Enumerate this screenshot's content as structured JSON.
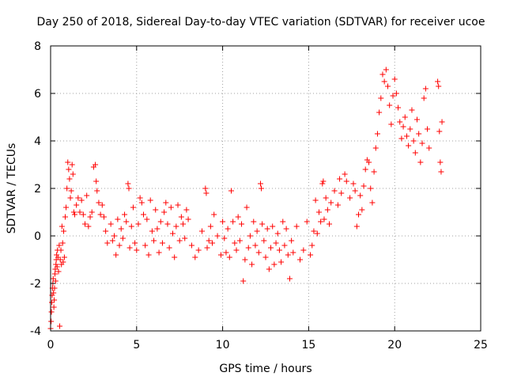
{
  "chart_data": {
    "type": "scatter",
    "title": "Day 250 of 2018, Sidereal Day-to-day VTEC variation (SDTVAR) for receiver ucoe",
    "xlabel": "GPS time / hours",
    "ylabel": "SDTVAR / TECUs",
    "xlim": [
      0,
      25
    ],
    "ylim": [
      -4,
      8
    ],
    "xticks": [
      0,
      5,
      10,
      15,
      20,
      25
    ],
    "yticks": [
      -4,
      -2,
      0,
      2,
      4,
      6,
      8
    ],
    "xtick_labels": [
      "0",
      "5",
      "10",
      "15",
      "20",
      "25"
    ],
    "ytick_labels": [
      "-4",
      "-2",
      "0",
      "2",
      "4",
      "6",
      "8"
    ],
    "grid": true,
    "marker": "+",
    "color": "#ff0000",
    "series": [
      {
        "name": "SDTVAR",
        "points": [
          [
            0.0,
            -3.9
          ],
          [
            0.03,
            -3.6
          ],
          [
            0.05,
            -3.2
          ],
          [
            0.07,
            -2.8
          ],
          [
            0.09,
            -2.5
          ],
          [
            0.11,
            -2.2
          ],
          [
            0.13,
            -2.0
          ],
          [
            0.15,
            -1.8
          ],
          [
            0.17,
            -2.4
          ],
          [
            0.19,
            -3.0
          ],
          [
            0.21,
            -2.7
          ],
          [
            0.23,
            -2.2
          ],
          [
            0.25,
            -1.6
          ],
          [
            0.27,
            -1.4
          ],
          [
            0.29,
            -1.9
          ],
          [
            0.31,
            -1.2
          ],
          [
            0.33,
            -1.0
          ],
          [
            0.35,
            -0.8
          ],
          [
            0.38,
            -1.3
          ],
          [
            0.4,
            -0.6
          ],
          [
            0.43,
            -0.9
          ],
          [
            0.46,
            -1.5
          ],
          [
            0.5,
            -0.4
          ],
          [
            0.53,
            -3.8
          ],
          [
            0.56,
            -1.0
          ],
          [
            0.6,
            -0.6
          ],
          [
            0.63,
            -1.2
          ],
          [
            0.66,
            0.4
          ],
          [
            0.7,
            -0.3
          ],
          [
            0.73,
            -1.1
          ],
          [
            0.76,
            0.2
          ],
          [
            0.8,
            -0.9
          ],
          [
            0.85,
            0.8
          ],
          [
            0.9,
            1.2
          ],
          [
            0.95,
            2.0
          ],
          [
            1.0,
            3.1
          ],
          [
            1.05,
            2.8
          ],
          [
            1.1,
            2.4
          ],
          [
            1.15,
            1.6
          ],
          [
            1.2,
            1.9
          ],
          [
            1.25,
            3.0
          ],
          [
            1.3,
            2.6
          ],
          [
            1.35,
            1.0
          ],
          [
            1.4,
            0.9
          ],
          [
            1.5,
            1.3
          ],
          [
            1.6,
            1.6
          ],
          [
            1.7,
            1.0
          ],
          [
            1.8,
            1.5
          ],
          [
            1.9,
            0.9
          ],
          [
            2.0,
            0.5
          ],
          [
            2.1,
            1.7
          ],
          [
            2.2,
            0.4
          ],
          [
            2.3,
            0.8
          ],
          [
            2.4,
            1.0
          ],
          [
            2.5,
            2.9
          ],
          [
            2.6,
            3.0
          ],
          [
            2.65,
            2.3
          ],
          [
            2.7,
            1.9
          ],
          [
            2.8,
            1.4
          ],
          [
            2.9,
            0.9
          ],
          [
            3.0,
            1.3
          ],
          [
            3.1,
            0.8
          ],
          [
            3.2,
            0.2
          ],
          [
            3.3,
            -0.3
          ],
          [
            3.5,
            0.5
          ],
          [
            3.6,
            -0.2
          ],
          [
            3.7,
            0.0
          ],
          [
            3.8,
            -0.8
          ],
          [
            3.9,
            0.7
          ],
          [
            4.0,
            -0.4
          ],
          [
            4.1,
            0.3
          ],
          [
            4.2,
            -0.1
          ],
          [
            4.3,
            0.9
          ],
          [
            4.4,
            0.6
          ],
          [
            4.5,
            2.2
          ],
          [
            4.55,
            2.0
          ],
          [
            4.6,
            -0.5
          ],
          [
            4.7,
            0.4
          ],
          [
            4.8,
            1.2
          ],
          [
            4.9,
            -0.3
          ],
          [
            5.0,
            -0.6
          ],
          [
            5.1,
            0.5
          ],
          [
            5.2,
            1.6
          ],
          [
            5.3,
            1.4
          ],
          [
            5.4,
            0.9
          ],
          [
            5.5,
            -0.4
          ],
          [
            5.6,
            0.7
          ],
          [
            5.7,
            -0.8
          ],
          [
            5.8,
            1.5
          ],
          [
            5.9,
            0.2
          ],
          [
            6.0,
            -0.2
          ],
          [
            6.1,
            1.1
          ],
          [
            6.2,
            0.3
          ],
          [
            6.3,
            -0.7
          ],
          [
            6.4,
            0.6
          ],
          [
            6.5,
            -0.3
          ],
          [
            6.6,
            1.0
          ],
          [
            6.7,
            1.4
          ],
          [
            6.8,
            0.5
          ],
          [
            6.9,
            -0.5
          ],
          [
            7.0,
            1.2
          ],
          [
            7.1,
            0.1
          ],
          [
            7.2,
            -0.9
          ],
          [
            7.3,
            0.4
          ],
          [
            7.4,
            1.3
          ],
          [
            7.5,
            -0.2
          ],
          [
            7.6,
            0.8
          ],
          [
            7.7,
            0.5
          ],
          [
            7.8,
            -0.1
          ],
          [
            7.9,
            1.1
          ],
          [
            8.0,
            0.7
          ],
          [
            8.2,
            -0.4
          ],
          [
            8.4,
            -0.9
          ],
          [
            8.6,
            -0.6
          ],
          [
            8.8,
            0.2
          ],
          [
            9.0,
            2.0
          ],
          [
            9.05,
            1.8
          ],
          [
            9.1,
            -0.5
          ],
          [
            9.2,
            -0.2
          ],
          [
            9.3,
            0.4
          ],
          [
            9.4,
            -0.3
          ],
          [
            9.5,
            0.9
          ],
          [
            9.7,
            0.0
          ],
          [
            9.9,
            -0.8
          ],
          [
            10.0,
            0.6
          ],
          [
            10.1,
            -0.1
          ],
          [
            10.2,
            -0.7
          ],
          [
            10.3,
            0.3
          ],
          [
            10.4,
            -0.9
          ],
          [
            10.5,
            1.9
          ],
          [
            10.6,
            0.6
          ],
          [
            10.7,
            -0.3
          ],
          [
            10.8,
            -0.6
          ],
          [
            10.9,
            0.8
          ],
          [
            11.0,
            -0.2
          ],
          [
            11.1,
            0.5
          ],
          [
            11.2,
            -1.9
          ],
          [
            11.3,
            -1.0
          ],
          [
            11.4,
            1.2
          ],
          [
            11.5,
            -0.5
          ],
          [
            11.6,
            0.0
          ],
          [
            11.7,
            -1.2
          ],
          [
            11.8,
            0.6
          ],
          [
            11.9,
            -0.4
          ],
          [
            12.0,
            0.2
          ],
          [
            12.1,
            -0.7
          ],
          [
            12.2,
            2.2
          ],
          [
            12.25,
            2.0
          ],
          [
            12.3,
            0.5
          ],
          [
            12.4,
            -0.2
          ],
          [
            12.5,
            -0.9
          ],
          [
            12.6,
            0.3
          ],
          [
            12.7,
            -1.4
          ],
          [
            12.8,
            -0.5
          ],
          [
            12.9,
            0.4
          ],
          [
            13.0,
            -1.2
          ],
          [
            13.1,
            -0.3
          ],
          [
            13.2,
            0.1
          ],
          [
            13.3,
            -0.6
          ],
          [
            13.4,
            -1.1
          ],
          [
            13.5,
            0.6
          ],
          [
            13.6,
            -0.4
          ],
          [
            13.7,
            0.3
          ],
          [
            13.8,
            -0.8
          ],
          [
            13.9,
            -1.8
          ],
          [
            14.0,
            -0.2
          ],
          [
            14.1,
            -0.7
          ],
          [
            14.3,
            0.4
          ],
          [
            14.5,
            -1.0
          ],
          [
            14.7,
            -0.6
          ],
          [
            14.9,
            0.6
          ],
          [
            15.1,
            -0.8
          ],
          [
            15.2,
            -0.4
          ],
          [
            15.3,
            0.2
          ],
          [
            15.4,
            1.5
          ],
          [
            15.5,
            0.1
          ],
          [
            15.6,
            1.0
          ],
          [
            15.7,
            0.6
          ],
          [
            15.8,
            2.2
          ],
          [
            15.85,
            2.3
          ],
          [
            15.9,
            0.7
          ],
          [
            16.0,
            1.6
          ],
          [
            16.1,
            1.1
          ],
          [
            16.2,
            0.5
          ],
          [
            16.3,
            1.4
          ],
          [
            16.5,
            1.9
          ],
          [
            16.7,
            1.3
          ],
          [
            16.8,
            2.4
          ],
          [
            16.9,
            1.8
          ],
          [
            17.1,
            2.6
          ],
          [
            17.2,
            2.3
          ],
          [
            17.4,
            1.6
          ],
          [
            17.6,
            2.2
          ],
          [
            17.7,
            1.9
          ],
          [
            17.8,
            0.4
          ],
          [
            17.9,
            0.9
          ],
          [
            18.0,
            1.7
          ],
          [
            18.1,
            1.1
          ],
          [
            18.2,
            2.1
          ],
          [
            18.3,
            2.8
          ],
          [
            18.4,
            3.2
          ],
          [
            18.5,
            3.1
          ],
          [
            18.6,
            2.0
          ],
          [
            18.7,
            1.4
          ],
          [
            18.8,
            2.7
          ],
          [
            18.9,
            3.7
          ],
          [
            19.0,
            4.3
          ],
          [
            19.1,
            5.2
          ],
          [
            19.2,
            5.8
          ],
          [
            19.3,
            6.8
          ],
          [
            19.4,
            6.5
          ],
          [
            19.5,
            7.0
          ],
          [
            19.6,
            6.3
          ],
          [
            19.7,
            5.5
          ],
          [
            19.8,
            4.7
          ],
          [
            19.9,
            5.9
          ],
          [
            20.0,
            6.6
          ],
          [
            20.1,
            6.0
          ],
          [
            20.2,
            5.4
          ],
          [
            20.3,
            4.8
          ],
          [
            20.4,
            4.1
          ],
          [
            20.5,
            4.6
          ],
          [
            20.6,
            5.0
          ],
          [
            20.7,
            4.2
          ],
          [
            20.8,
            3.8
          ],
          [
            20.9,
            4.5
          ],
          [
            21.0,
            5.3
          ],
          [
            21.1,
            4.0
          ],
          [
            21.2,
            3.5
          ],
          [
            21.3,
            4.9
          ],
          [
            21.4,
            4.3
          ],
          [
            21.5,
            3.1
          ],
          [
            21.6,
            3.9
          ],
          [
            21.7,
            5.8
          ],
          [
            21.8,
            6.2
          ],
          [
            21.9,
            4.5
          ],
          [
            22.0,
            3.7
          ],
          [
            22.5,
            6.5
          ],
          [
            22.55,
            6.3
          ],
          [
            22.6,
            4.4
          ],
          [
            22.65,
            3.1
          ],
          [
            22.7,
            2.7
          ],
          [
            22.75,
            4.8
          ]
        ]
      }
    ]
  }
}
